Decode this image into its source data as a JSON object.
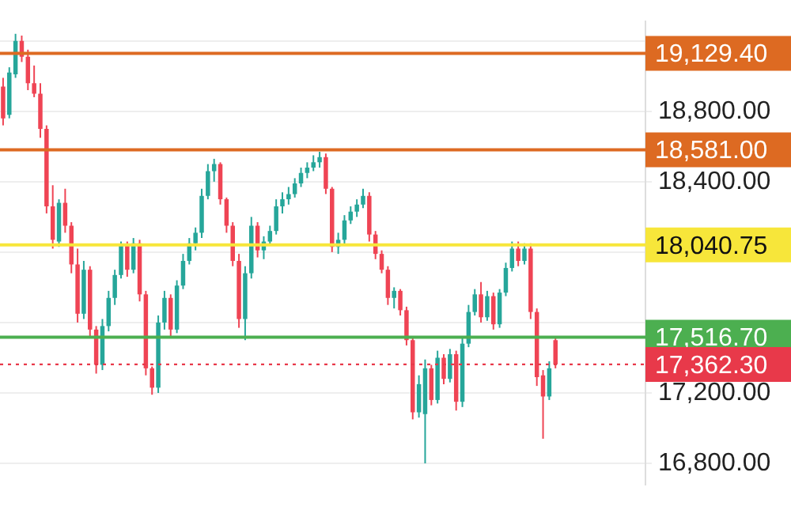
{
  "chart_data": {
    "type": "candlestick",
    "categories": [
      null,
      null,
      null,
      null,
      null,
      null,
      null,
      null,
      null,
      null,
      null,
      null,
      null,
      null,
      null,
      null,
      null,
      null,
      null,
      null,
      null,
      null,
      null,
      null,
      null,
      null,
      null,
      null,
      null,
      null,
      null,
      null,
      null,
      null,
      null,
      null,
      null,
      null,
      null,
      null,
      null,
      null,
      null,
      null,
      null,
      null,
      null,
      null,
      null,
      null,
      null,
      null,
      null,
      null,
      null,
      null,
      null,
      null,
      null,
      null,
      null,
      null,
      null,
      null,
      null,
      null,
      null,
      null,
      null,
      null,
      null,
      null,
      null,
      null,
      null,
      null,
      null,
      null,
      null,
      null,
      null,
      null,
      null,
      null,
      null,
      null,
      null,
      null,
      null,
      null,
      null,
      null,
      null,
      null,
      null,
      null,
      null,
      null,
      null,
      null,
      null,
      null,
      null,
      null
    ],
    "ohlc": [
      [
        18940,
        18990,
        18720,
        18760
      ],
      [
        18780,
        19050,
        18760,
        19020
      ],
      [
        19010,
        19240,
        18990,
        19200
      ],
      [
        19200,
        19230,
        19080,
        19110
      ],
      [
        19110,
        19150,
        18920,
        18960
      ],
      [
        18960,
        19060,
        18880,
        18900
      ],
      [
        18900,
        18960,
        18650,
        18700
      ],
      [
        18700,
        18720,
        18220,
        18260
      ],
      [
        18260,
        18380,
        18020,
        18070
      ],
      [
        18060,
        18300,
        18030,
        18280
      ],
      [
        18280,
        18360,
        18110,
        18150
      ],
      [
        18150,
        18170,
        17880,
        17930
      ],
      [
        17930,
        18020,
        17600,
        17650
      ],
      [
        17650,
        17950,
        17620,
        17900
      ],
      [
        17900,
        17920,
        17520,
        17560
      ],
      [
        17560,
        17580,
        17310,
        17360
      ],
      [
        17360,
        17620,
        17330,
        17580
      ],
      [
        17580,
        17780,
        17550,
        17740
      ],
      [
        17740,
        17900,
        17700,
        17870
      ],
      [
        17870,
        18060,
        17850,
        18040
      ],
      [
        18040,
        18060,
        17860,
        17900
      ],
      [
        17900,
        18080,
        17880,
        18050
      ],
      [
        18050,
        18070,
        17720,
        17760
      ],
      [
        17760,
        17780,
        17300,
        17340
      ],
      [
        17340,
        17350,
        17190,
        17230
      ],
      [
        17230,
        17640,
        17200,
        17600
      ],
      [
        17600,
        17780,
        17560,
        17740
      ],
      [
        17740,
        17760,
        17520,
        17560
      ],
      [
        17560,
        17840,
        17540,
        17810
      ],
      [
        17810,
        17990,
        17790,
        17950
      ],
      [
        17950,
        18080,
        17930,
        18050
      ],
      [
        18050,
        18140,
        18010,
        18110
      ],
      [
        18110,
        18360,
        18080,
        18320
      ],
      [
        18320,
        18500,
        18300,
        18460
      ],
      [
        18460,
        18530,
        18400,
        18500
      ],
      [
        18500,
        18510,
        18270,
        18300
      ],
      [
        18300,
        18310,
        18110,
        18150
      ],
      [
        18150,
        18170,
        17920,
        17950
      ],
      [
        17950,
        17990,
        17570,
        17620
      ],
      [
        17620,
        17920,
        17500,
        17880
      ],
      [
        17880,
        18200,
        17850,
        18150
      ],
      [
        18150,
        18170,
        17970,
        18010
      ],
      [
        18010,
        18090,
        17960,
        18060
      ],
      [
        18060,
        18150,
        18040,
        18120
      ],
      [
        18120,
        18300,
        18100,
        18260
      ],
      [
        18260,
        18340,
        18220,
        18300
      ],
      [
        18300,
        18370,
        18270,
        18330
      ],
      [
        18330,
        18420,
        18310,
        18390
      ],
      [
        18390,
        18480,
        18370,
        18450
      ],
      [
        18450,
        18510,
        18420,
        18480
      ],
      [
        18480,
        18550,
        18460,
        18510
      ],
      [
        18510,
        18570,
        18480,
        18540
      ],
      [
        18540,
        18560,
        18330,
        18360
      ],
      [
        18360,
        18370,
        18000,
        18030
      ],
      [
        18030,
        18110,
        17990,
        18070
      ],
      [
        18070,
        18210,
        18040,
        18180
      ],
      [
        18180,
        18260,
        18160,
        18230
      ],
      [
        18230,
        18300,
        18200,
        18270
      ],
      [
        18270,
        18360,
        18250,
        18320
      ],
      [
        18320,
        18340,
        18060,
        18100
      ],
      [
        18100,
        18120,
        17960,
        17990
      ],
      [
        17990,
        18010,
        17880,
        17900
      ],
      [
        17900,
        17920,
        17700,
        17740
      ],
      [
        17740,
        17800,
        17680,
        17780
      ],
      [
        17780,
        17790,
        17640,
        17670
      ],
      [
        17670,
        17690,
        17470,
        17500
      ],
      [
        17500,
        17520,
        17050,
        17090
      ],
      [
        17090,
        17300,
        17060,
        17250
      ],
      [
        17080,
        17390,
        16800,
        17340
      ],
      [
        17340,
        17360,
        17130,
        17160
      ],
      [
        17160,
        17440,
        17140,
        17400
      ],
      [
        17400,
        17420,
        17250,
        17280
      ],
      [
        17280,
        17450,
        17260,
        17420
      ],
      [
        17420,
        17440,
        17100,
        17150
      ],
      [
        17150,
        17510,
        17120,
        17480
      ],
      [
        17480,
        17700,
        17460,
        17660
      ],
      [
        17660,
        17790,
        17640,
        17760
      ],
      [
        17760,
        17830,
        17600,
        17630
      ],
      [
        17630,
        17780,
        17610,
        17750
      ],
      [
        17750,
        17770,
        17560,
        17590
      ],
      [
        17590,
        17790,
        17570,
        17770
      ],
      [
        17770,
        17940,
        17750,
        17910
      ],
      [
        17910,
        18060,
        17890,
        18020
      ],
      [
        18020,
        18060,
        17920,
        17950
      ],
      [
        17950,
        18050,
        17930,
        18020
      ],
      [
        18020,
        18050,
        17620,
        17660
      ],
      [
        17660,
        17680,
        17240,
        17290
      ],
      [
        17300,
        17330,
        16940,
        17180
      ],
      [
        17180,
        17380,
        17160,
        17340
      ],
      [
        17500,
        17520,
        17340,
        17362.3
      ],
      null,
      null,
      null,
      null,
      null,
      null,
      null,
      null,
      null,
      null,
      null,
      null,
      null,
      null
    ],
    "colors": [
      "#ef4454",
      "#26a69a",
      "#26a69a",
      "#ef4454",
      "#ef4454",
      "#ef4454",
      "#ef4454",
      "#ef4454",
      "#ef4454",
      "#26a69a",
      "#ef4454",
      "#ef4454",
      "#ef4454",
      "#26a69a",
      "#ef4454",
      "#ef4454",
      "#26a69a",
      "#26a69a",
      "#26a69a",
      "#26a69a",
      "#ef4454",
      "#26a69a",
      "#ef4454",
      "#ef4454",
      "#ef4454",
      "#26a69a",
      "#26a69a",
      "#ef4454",
      "#26a69a",
      "#26a69a",
      "#26a69a",
      "#26a69a",
      "#26a69a",
      "#26a69a",
      "#26a69a",
      "#ef4454",
      "#ef4454",
      "#ef4454",
      "#ef4454",
      "#26a69a",
      "#26a69a",
      "#ef4454",
      "#26a69a",
      "#26a69a",
      "#26a69a",
      "#26a69a",
      "#26a69a",
      "#26a69a",
      "#26a69a",
      "#26a69a",
      "#26a69a",
      "#26a69a",
      "#ef4454",
      "#ef4454",
      "#26a69a",
      "#26a69a",
      "#26a69a",
      "#26a69a",
      "#26a69a",
      "#ef4454",
      "#ef4454",
      "#ef4454",
      "#ef4454",
      "#26a69a",
      "#ef4454",
      "#ef4454",
      "#ef4454",
      "#26a69a",
      "#26a69a",
      "#ef4454",
      "#26a69a",
      "#ef4454",
      "#26a69a",
      "#ef4454",
      "#26a69a",
      "#26a69a",
      "#26a69a",
      "#ef4454",
      "#26a69a",
      "#ef4454",
      "#26a69a",
      "#26a69a",
      "#26a69a",
      "#ef4454",
      "#26a69a",
      "#ef4454",
      "#ef4454",
      "#ef4454",
      "#26a69a",
      "#ef4454",
      null,
      null,
      null,
      null,
      null,
      null,
      null,
      null,
      null,
      null,
      null,
      null,
      null,
      null
    ],
    "ylim": [
      16680,
      19310
    ],
    "yticks": [
      {
        "value": 16800,
        "label": "16,800.00"
      },
      {
        "value": 17200,
        "label": "17,200.00"
      },
      {
        "value": 17600,
        "label": null
      },
      {
        "value": 18000,
        "label": null
      },
      {
        "value": 18400,
        "label": "18,400.00"
      },
      {
        "value": 18800,
        "label": "18,800.00"
      },
      {
        "value": 19200,
        "label": null
      }
    ],
    "grid": "y",
    "ref_lines": [
      {
        "axis": "y",
        "value": 19129.4,
        "label": "19,129.40",
        "color": "#dd6a22"
      },
      {
        "axis": "y",
        "value": 18581,
        "label": "18,581.00",
        "color": "#dd6a22"
      },
      {
        "axis": "y",
        "value": 18040.75,
        "label": "18,040.75",
        "color": "#f7e63a"
      },
      {
        "axis": "y",
        "value": 17516.7,
        "label": "17,516.70",
        "color": "#4caf50"
      },
      {
        "axis": "y",
        "value": 17362.3,
        "label": "17,362.30",
        "color": "#e8394a",
        "line_style": "dotted"
      }
    ]
  }
}
